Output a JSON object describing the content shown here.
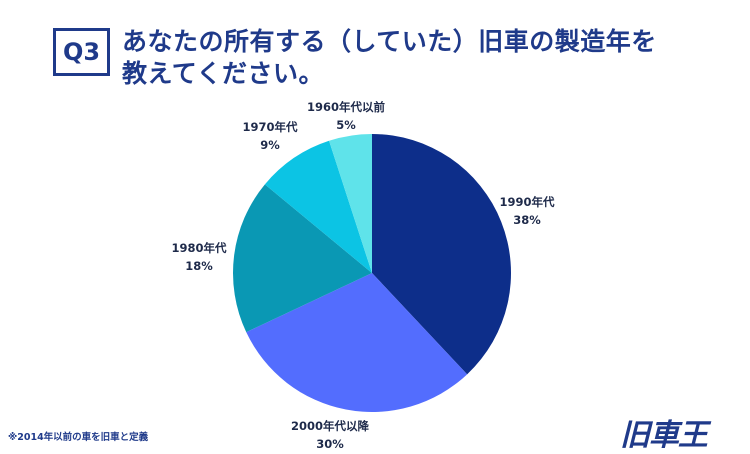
{
  "badge": "Q3",
  "title": {
    "line1": "あなたの所有する（していた）旧車の製造年を",
    "line2": "教えてください。"
  },
  "footnote": "※2014年以前の車を旧車と定義",
  "logo": "旧車王",
  "colors": {
    "accent": "#1f3a8a",
    "slices": [
      "#0d2e8a",
      "#536dfe",
      "#0a98b4",
      "#0cc4e4",
      "#5fe3ea"
    ]
  },
  "chart_data": {
    "type": "pie",
    "title": "あなたの所有する（していた）旧車の製造年を教えてください。",
    "start_angle": "12 o'clock",
    "direction": "clockwise",
    "slices": [
      {
        "label": "1990年代",
        "value": 38,
        "display": "38%"
      },
      {
        "label": "2000年代以降",
        "value": 30,
        "display": "30%"
      },
      {
        "label": "1980年代",
        "value": 18,
        "display": "18%"
      },
      {
        "label": "1970年代",
        "value": 9,
        "display": "9%"
      },
      {
        "label": "1960年代以前",
        "value": 5,
        "display": "5%"
      }
    ]
  }
}
